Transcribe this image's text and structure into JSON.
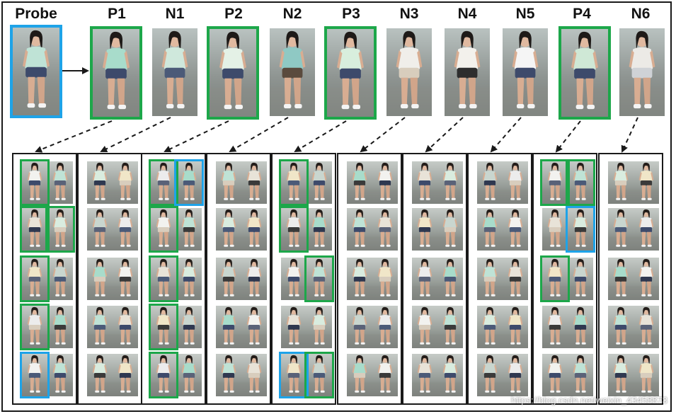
{
  "headers": [
    "Probe",
    "P1",
    "N1",
    "P2",
    "N2",
    "P3",
    "N3",
    "N4",
    "N5",
    "P4",
    "N6"
  ],
  "top_images": [
    {
      "label": "Probe",
      "border": "blue",
      "shirt": "#bfe3d6",
      "shorts": "#3d4a6b"
    },
    {
      "label": "P1",
      "border": "green",
      "shirt": "#a8dccb",
      "shorts": "#3d4a6b"
    },
    {
      "label": "N1",
      "border": "none",
      "shirt": "#cfe8dc",
      "shorts": "#4b5a78"
    },
    {
      "label": "P2",
      "border": "green",
      "shirt": "#e4f1e6",
      "shorts": "#3d4a6b"
    },
    {
      "label": "N2",
      "border": "none",
      "shirt": "#8fc9c4",
      "shorts": "#5a4a3d"
    },
    {
      "label": "P3",
      "border": "green",
      "shirt": "#d8eedd",
      "shorts": "#3d4a6b"
    },
    {
      "label": "N3",
      "border": "none",
      "shirt": "#f0eeea",
      "shorts": "#d8cdbd"
    },
    {
      "label": "N4",
      "border": "none",
      "shirt": "#f3f1ec",
      "shorts": "#2d2d2d"
    },
    {
      "label": "N5",
      "border": "none",
      "shirt": "#f5f5f5",
      "shorts": "#3d4a6b"
    },
    {
      "label": "P4",
      "border": "green",
      "shirt": "#cfe8d6",
      "shorts": "#3d4a6b"
    },
    {
      "label": "N6",
      "border": "none",
      "shirt": "#eceae6",
      "shorts": "#cfd2d6"
    }
  ],
  "panels": [
    {
      "source": "P1",
      "highlights": [
        {
          "row": 0,
          "col": 0,
          "rows": 1,
          "color": "green"
        },
        {
          "row": 1,
          "col": 0,
          "rows": 1,
          "color": "green"
        },
        {
          "row": 1,
          "col": 1,
          "rows": 1,
          "color": "green"
        },
        {
          "row": 2,
          "col": 0,
          "rows": 1,
          "color": "green"
        },
        {
          "row": 3,
          "col": 0,
          "rows": 1,
          "color": "green"
        },
        {
          "row": 4,
          "col": 0,
          "rows": 1,
          "color": "blue"
        }
      ]
    },
    {
      "source": "N1",
      "highlights": []
    },
    {
      "source": "P2",
      "highlights": [
        {
          "row": 0,
          "col": 0,
          "rows": 1,
          "color": "green"
        },
        {
          "row": 0,
          "col": 1,
          "rows": 1,
          "color": "blue"
        },
        {
          "row": 1,
          "col": 0,
          "rows": 1,
          "color": "green"
        },
        {
          "row": 2,
          "col": 0,
          "rows": 1,
          "color": "green"
        },
        {
          "row": 3,
          "col": 0,
          "rows": 1,
          "color": "green"
        },
        {
          "row": 4,
          "col": 0,
          "rows": 1,
          "color": "green"
        }
      ]
    },
    {
      "source": "N2",
      "highlights": []
    },
    {
      "source": "P3",
      "highlights": [
        {
          "row": 0,
          "col": 0,
          "rows": 1,
          "color": "green"
        },
        {
          "row": 1,
          "col": 0,
          "rows": 1,
          "color": "green"
        },
        {
          "row": 2,
          "col": 1,
          "rows": 1,
          "color": "green"
        },
        {
          "row": 4,
          "col": 0,
          "rows": 1,
          "color": "blue"
        },
        {
          "row": 4,
          "col": 1,
          "rows": 1,
          "color": "green"
        }
      ]
    },
    {
      "source": "N3",
      "highlights": []
    },
    {
      "source": "N4",
      "highlights": []
    },
    {
      "source": "N5",
      "highlights": []
    },
    {
      "source": "P4",
      "highlights": [
        {
          "row": 0,
          "col": 0,
          "rows": 1,
          "color": "green"
        },
        {
          "row": 0,
          "col": 1,
          "rows": 1,
          "color": "green"
        },
        {
          "row": 1,
          "col": 1,
          "rows": 1,
          "color": "blue"
        },
        {
          "row": 2,
          "col": 0,
          "rows": 1,
          "color": "green"
        }
      ]
    },
    {
      "source": "N6",
      "highlights": []
    }
  ],
  "colors": {
    "green": "#1da74a",
    "blue": "#1ea3e8",
    "line": "#1a1a1a"
  },
  "watermark": "https://blog.csdn.net/weixin_43458873"
}
